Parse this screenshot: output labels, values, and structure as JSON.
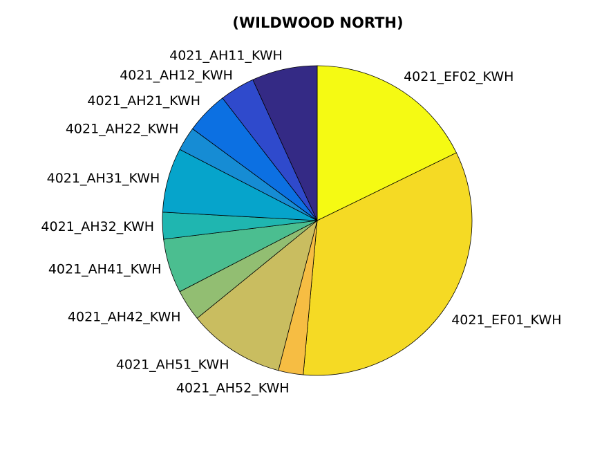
{
  "chart_data": {
    "type": "pie",
    "title": "(WILDWOOD NORTH)",
    "slices": [
      {
        "label": "4021_EF02_KWH",
        "value": 18.5,
        "color": "#F5FA13"
      },
      {
        "label": "4021_EF01_KWH",
        "value": 35.0,
        "color": "#F5DA24"
      },
      {
        "label": "4021_AH52_KWH",
        "value": 2.7,
        "color": "#F6BD43"
      },
      {
        "label": "4021_AH51_KWH",
        "value": 10.5,
        "color": "#C9BD60"
      },
      {
        "label": "4021_AH42_KWH",
        "value": 3.4,
        "color": "#92BE72"
      },
      {
        "label": "4021_AH41_KWH",
        "value": 5.9,
        "color": "#4BBE90"
      },
      {
        "label": "4021_AH32_KWH",
        "value": 2.9,
        "color": "#1FB6B0"
      },
      {
        "label": "4021_AH31_KWH",
        "value": 7.0,
        "color": "#06A4CB"
      },
      {
        "label": "4021_AH22_KWH",
        "value": 2.6,
        "color": "#168CD4"
      },
      {
        "label": "4021_AH21_KWH",
        "value": 4.6,
        "color": "#0C70E2"
      },
      {
        "label": "4021_AH12_KWH",
        "value": 3.8,
        "color": "#2F4ACC"
      },
      {
        "label": "4021_AH11_KWH",
        "value": 7.1,
        "color": "#342A85"
      }
    ]
  }
}
